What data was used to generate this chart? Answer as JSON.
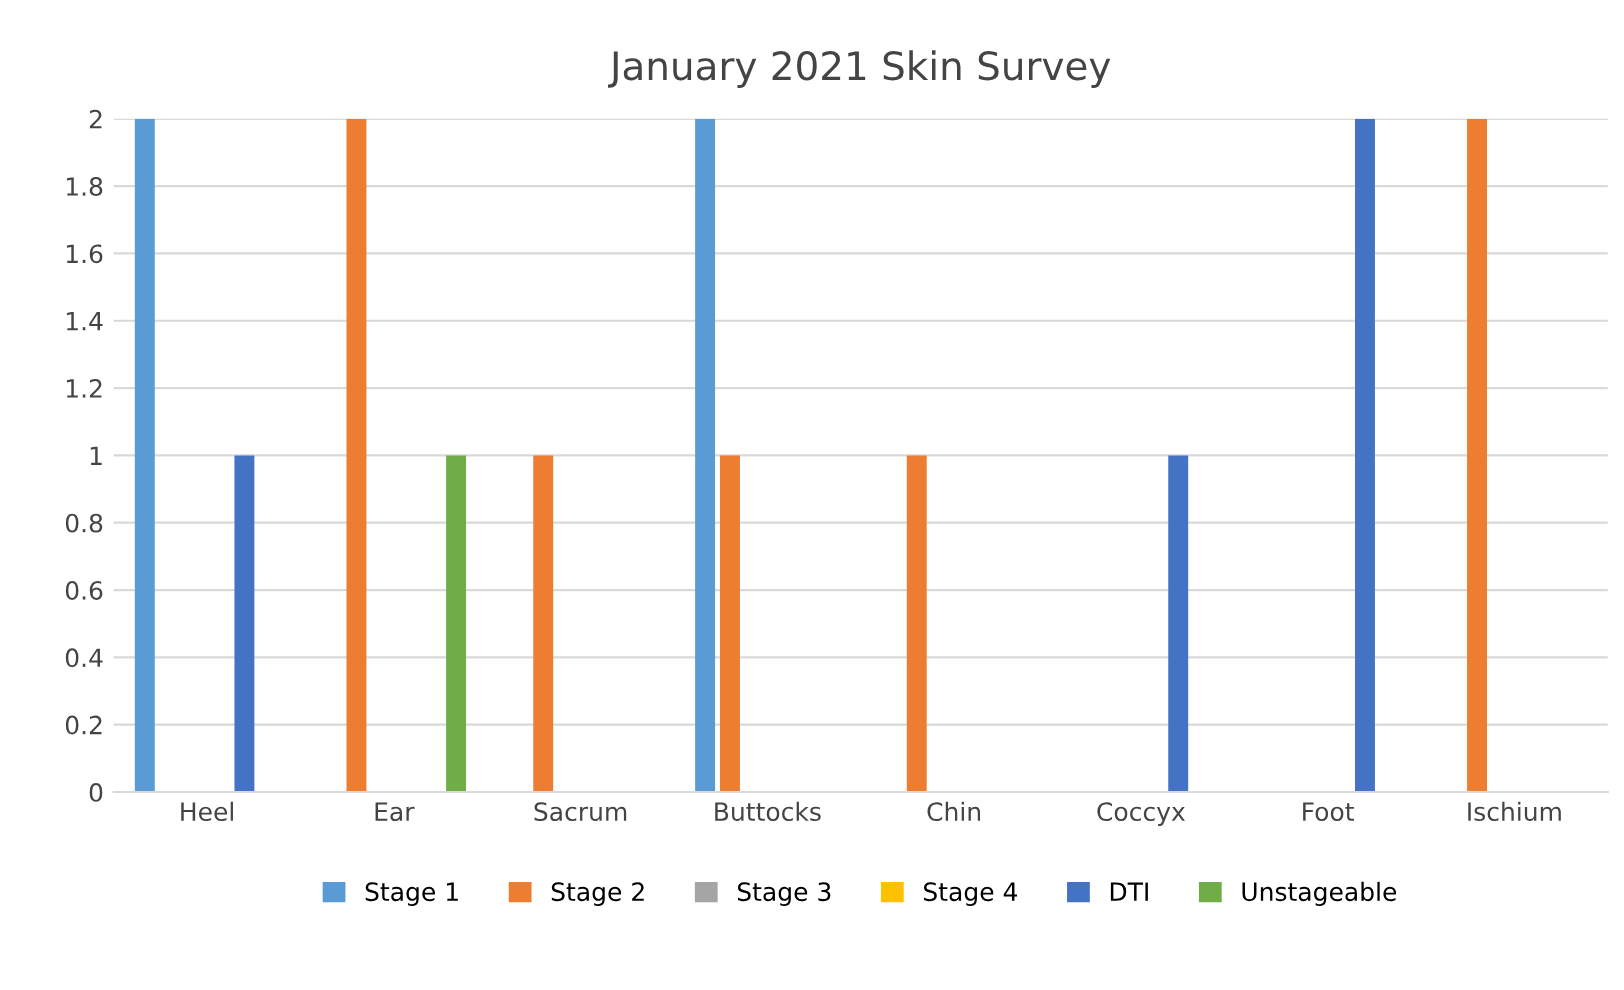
{
  "chart_data": {
    "type": "bar",
    "title": "January 2021 Skin Survey",
    "categories": [
      "Heel",
      "Ear",
      "Sacrum",
      "Buttocks",
      "Chin",
      "Coccyx",
      "Foot",
      "Ischium"
    ],
    "series": [
      {
        "name": "Stage 1",
        "color": "#5b9bd5",
        "values": [
          2,
          0,
          0,
          2,
          0,
          0,
          0,
          0
        ]
      },
      {
        "name": "Stage 2",
        "color": "#ed7d31",
        "values": [
          0,
          2,
          1,
          1,
          1,
          0,
          0,
          2
        ]
      },
      {
        "name": "Stage 3",
        "color": "#a5a5a5",
        "values": [
          0,
          0,
          0,
          0,
          0,
          0,
          0,
          0
        ]
      },
      {
        "name": "Stage 4",
        "color": "#ffc000",
        "values": [
          0,
          0,
          0,
          0,
          0,
          0,
          0,
          0
        ]
      },
      {
        "name": "DTI",
        "color": "#4472c4",
        "values": [
          1,
          0,
          0,
          0,
          0,
          1,
          2,
          0
        ]
      },
      {
        "name": "Unstageable",
        "color": "#70ad47",
        "values": [
          0,
          1,
          0,
          0,
          0,
          0,
          0,
          0
        ]
      }
    ],
    "ylim": [
      0,
      2
    ],
    "yticks": [
      0,
      0.2,
      0.4,
      0.6,
      0.8,
      1,
      1.2,
      1.4,
      1.6,
      1.8,
      2
    ],
    "grid": "y",
    "legend": "bottom"
  }
}
